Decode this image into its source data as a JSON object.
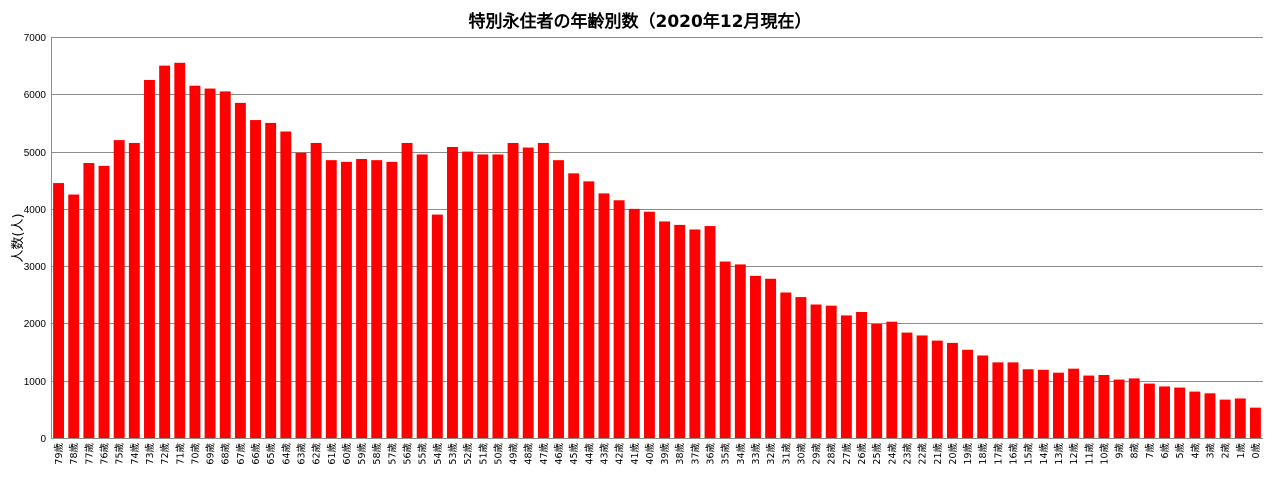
{
  "chart_data": {
    "type": "bar",
    "title": "特別永住者の年齢別数（2020年12月現在）",
    "xlabel": "",
    "ylabel": "人数(人)",
    "ylim": [
      0,
      7000
    ],
    "yticks": [
      0,
      1000,
      2000,
      3000,
      4000,
      5000,
      6000,
      7000
    ],
    "grid": true,
    "bar_color": "#ff0000",
    "categories": [
      "79歳",
      "78歳",
      "77歳",
      "76歳",
      "75歳",
      "74歳",
      "73歳",
      "72歳",
      "71歳",
      "70歳",
      "69歳",
      "68歳",
      "67歳",
      "66歳",
      "65歳",
      "64歳",
      "63歳",
      "62歳",
      "61歳",
      "60歳",
      "59歳",
      "58歳",
      "57歳",
      "56歳",
      "55歳",
      "54歳",
      "53歳",
      "52歳",
      "51歳",
      "50歳",
      "49歳",
      "48歳",
      "47歳",
      "46歳",
      "45歳",
      "44歳",
      "43歳",
      "42歳",
      "41歳",
      "40歳",
      "39歳",
      "38歳",
      "37歳",
      "36歳",
      "35歳",
      "34歳",
      "33歳",
      "32歳",
      "31歳",
      "30歳",
      "29歳",
      "28歳",
      "27歳",
      "26歳",
      "25歳",
      "24歳",
      "23歳",
      "22歳",
      "21歳",
      "20歳",
      "19歳",
      "18歳",
      "17歳",
      "16歳",
      "15歳",
      "14歳",
      "13歳",
      "12歳",
      "11歳",
      "10歳",
      "9歳",
      "8歳",
      "7歳",
      "6歳",
      "5歳",
      "4歳",
      "3歳",
      "2歳",
      "1歳",
      "0歳"
    ],
    "values": [
      4450,
      4250,
      4800,
      4750,
      5200,
      5150,
      6250,
      6500,
      6550,
      6150,
      6100,
      6050,
      5850,
      5550,
      5500,
      5350,
      4980,
      5150,
      4850,
      4820,
      4870,
      4850,
      4820,
      5150,
      4950,
      3900,
      5080,
      5000,
      4950,
      4950,
      5150,
      5070,
      5150,
      4850,
      4620,
      4480,
      4270,
      4150,
      4000,
      3950,
      3780,
      3720,
      3640,
      3700,
      3080,
      3030,
      2830,
      2780,
      2540,
      2460,
      2330,
      2310,
      2140,
      2200,
      1990,
      2030,
      1840,
      1790,
      1700,
      1660,
      1540,
      1440,
      1320,
      1320,
      1200,
      1190,
      1140,
      1210,
      1090,
      1100,
      1020,
      1040,
      950,
      900,
      880,
      810,
      780,
      670,
      690,
      530
    ]
  }
}
